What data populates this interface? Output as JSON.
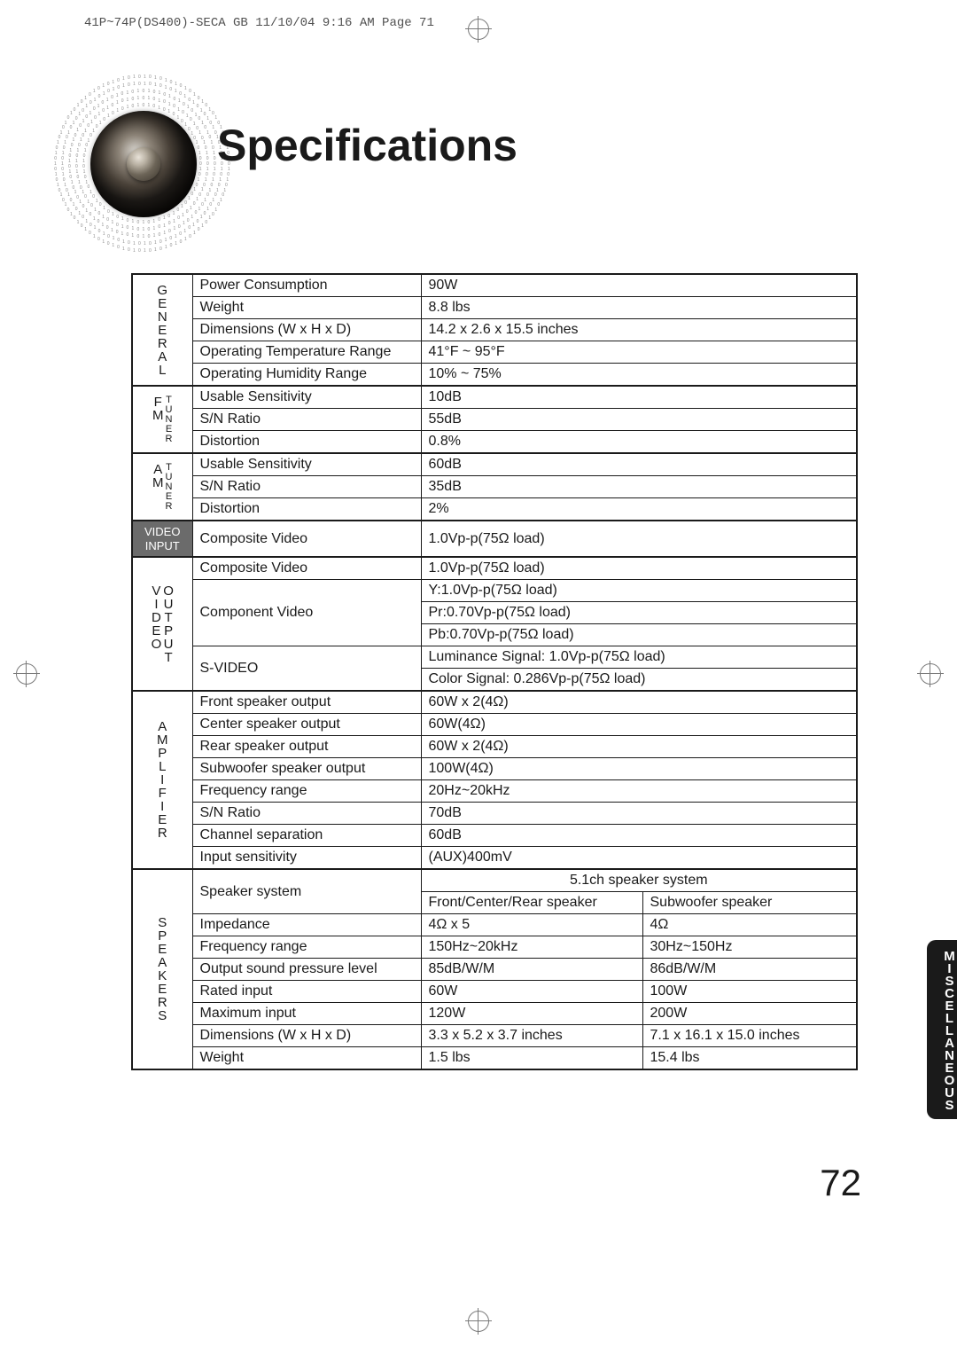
{
  "header_info": "41P~74P(DS400)-SECA GB  11/10/04 9:16 AM  Page 71",
  "title": "Specifications",
  "side_tab": "MISCELLANEOUS",
  "page_number": "72",
  "colors": {
    "text": "#1a1a1a",
    "border": "#1a1a1a",
    "dark_cell_bg": "#6b6b6b",
    "dark_cell_fg": "#ffffff",
    "background": "#ffffff",
    "crop_mark": "#7a7a7a"
  },
  "categories": {
    "general": "GENERAL",
    "fm_tuner_left": "FM",
    "fm_tuner_right": "TUNER",
    "am_tuner_left": "AM",
    "am_tuner_right": "TUNER",
    "video_input": "VIDEO INPUT",
    "video_output_left": "VIDEO",
    "video_output_right": "OUTPUT",
    "amplifier": "AMPLIFIER",
    "speakers": "SPEAKERS"
  },
  "general": {
    "power_consumption_label": "Power Consumption",
    "power_consumption": "90W",
    "weight_label": "Weight",
    "weight": "8.8 lbs",
    "dimensions_label": "Dimensions (W x H x D)",
    "dimensions": "14.2 x 2.6 x 15.5 inches",
    "op_temp_label": "Operating Temperature Range",
    "op_temp": "41°F ~ 95°F",
    "op_humidity_label": "Operating Humidity Range",
    "op_humidity": "10% ~ 75%"
  },
  "fm_tuner": {
    "usable_sensitivity_label": "Usable Sensitivity",
    "usable_sensitivity": "10dB",
    "sn_ratio_label": "S/N Ratio",
    "sn_ratio": "55dB",
    "distortion_label": "Distortion",
    "distortion": "0.8%"
  },
  "am_tuner": {
    "usable_sensitivity_label": "Usable Sensitivity",
    "usable_sensitivity": "60dB",
    "sn_ratio_label": "S/N Ratio",
    "sn_ratio": "35dB",
    "distortion_label": "Distortion",
    "distortion": "2%"
  },
  "video_input": {
    "composite_label": "Composite  Video",
    "composite": "1.0Vp-p(75Ω load)"
  },
  "video_output": {
    "composite_label": "Composite Video",
    "composite": "1.0Vp-p(75Ω load)",
    "component_label": "Component Video",
    "component_y": "Y:1.0Vp-p(75Ω load)",
    "component_pr": "Pr:0.70Vp-p(75Ω load)",
    "component_pb": "Pb:0.70Vp-p(75Ω load)",
    "svideo_label": "S-VIDEO",
    "svideo_lum": "Luminance Signal: 1.0Vp-p(75Ω load)",
    "svideo_col": "Color Signal: 0.286Vp-p(75Ω load)"
  },
  "amplifier": {
    "front_label": "Front speaker output",
    "front": "60W x 2(4Ω)",
    "center_label": "Center speaker output",
    "center": "60W(4Ω)",
    "rear_label": "Rear speaker output",
    "rear": "60W x 2(4Ω)",
    "sub_label": "Subwoofer speaker output",
    "sub": "100W(4Ω)",
    "freq_range_label": "Frequency range",
    "freq_range": "20Hz~20kHz",
    "sn_ratio_label": "S/N Ratio",
    "sn_ratio": "70dB",
    "ch_sep_label": "Channel separation",
    "ch_sep": "60dB",
    "input_sens_label": "Input sensitivity",
    "input_sens": "(AUX)400mV"
  },
  "speakers": {
    "system_label": "Speaker system",
    "system_heading": "5.1ch speaker system",
    "col1_header": "Front/Center/Rear speaker",
    "col2_header": "Subwoofer speaker",
    "impedance_label": "Impedance",
    "impedance_a": "4Ω x 5",
    "impedance_b": "4Ω",
    "freq_range_label": "Frequency range",
    "freq_range_a": "150Hz~20kHz",
    "freq_range_b": "30Hz~150Hz",
    "spl_label": "Output sound pressure level",
    "spl_a": "85dB/W/M",
    "spl_b": "86dB/W/M",
    "rated_input_label": "Rated input",
    "rated_input_a": "60W",
    "rated_input_b": "100W",
    "max_input_label": "Maximum input",
    "max_input_a": "120W",
    "max_input_b": "200W",
    "dimensions_label": "Dimensions  (W x H x D)",
    "dimensions_a": "3.3 x 5.2 x 3.7 inches",
    "dimensions_b": "7.1 x 16.1 x 15.0 inches",
    "weight_label": "Weight",
    "weight_a": "1.5 lbs",
    "weight_b": "15.4 lbs"
  }
}
